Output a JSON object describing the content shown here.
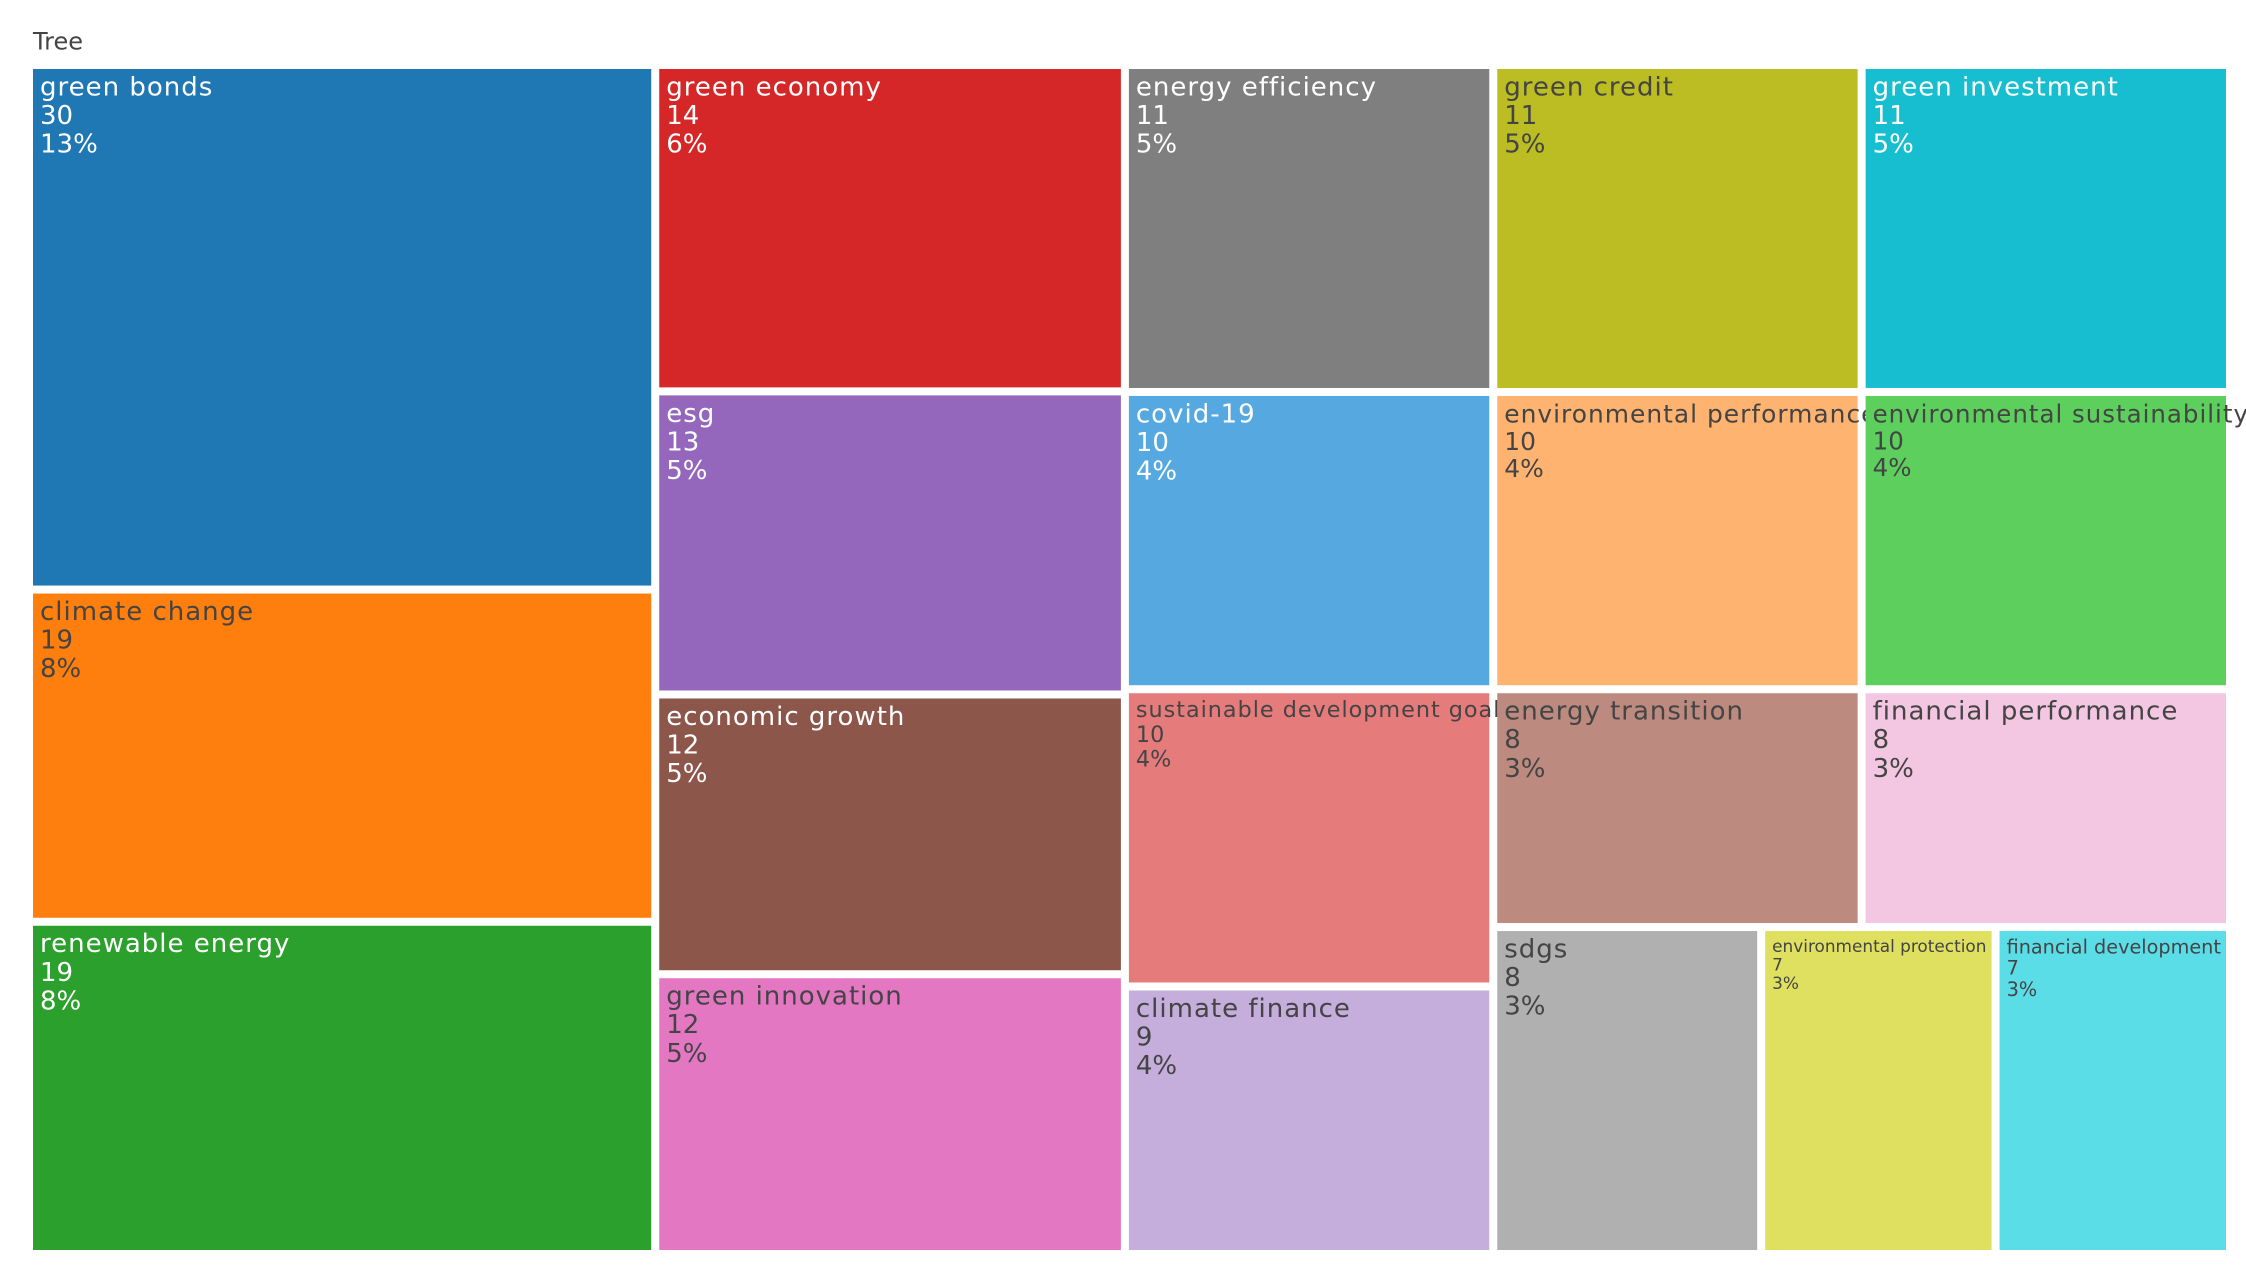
{
  "chart_data": {
    "type": "treemap",
    "title": "Tree",
    "categories": [
      "green bonds",
      "climate change",
      "renewable energy",
      "green economy",
      "esg",
      "economic growth",
      "green innovation",
      "energy efficiency",
      "covid-19",
      "sustainable development goals",
      "climate finance",
      "green credit",
      "green investment",
      "environmental performance",
      "environmental sustainability",
      "energy transition",
      "financial performance",
      "sdgs",
      "environmental protection",
      "financial development"
    ],
    "values": [
      30,
      19,
      19,
      14,
      13,
      12,
      12,
      11,
      10,
      10,
      9,
      11,
      11,
      10,
      10,
      8,
      8,
      8,
      7,
      7
    ],
    "shares": [
      {
        "value": 13,
        "label": "13%"
      },
      {
        "value": 8,
        "label": "8%"
      },
      {
        "value": 8,
        "label": "8%"
      },
      {
        "value": 6,
        "label": "6%"
      },
      {
        "value": 5,
        "label": "5%"
      },
      {
        "value": 5,
        "label": "5%"
      },
      {
        "value": 5,
        "label": "5%"
      },
      {
        "value": 5,
        "label": "5%"
      },
      {
        "value": 4,
        "label": "4%"
      },
      {
        "value": 4,
        "label": "4%"
      },
      {
        "value": 4,
        "label": "4%"
      },
      {
        "value": 5,
        "label": "5%"
      },
      {
        "value": 5,
        "label": "5%"
      },
      {
        "value": 4,
        "label": "4%"
      },
      {
        "value": 4,
        "label": "4%"
      },
      {
        "value": 3,
        "label": "3%"
      },
      {
        "value": 3,
        "label": "3%"
      },
      {
        "value": 3,
        "label": "3%"
      },
      {
        "value": 3,
        "label": "3%"
      },
      {
        "value": 3,
        "label": "3%"
      }
    ],
    "colors": [
      "#1f77b4",
      "#ff7f0e",
      "#2ca02c",
      "#d62728",
      "#9467bd",
      "#8c564b",
      "#e377c2",
      "#7f7f7f",
      "#56a8e0",
      "#e57b7b",
      "#c5aedb",
      "#bcbd22",
      "#17becf",
      "#ffb371",
      "#5ccf5c",
      "#bc8a7f",
      "#f3c6e2",
      "#b0b0b0",
      "#e0e060",
      "#5bdde8"
    ]
  }
}
